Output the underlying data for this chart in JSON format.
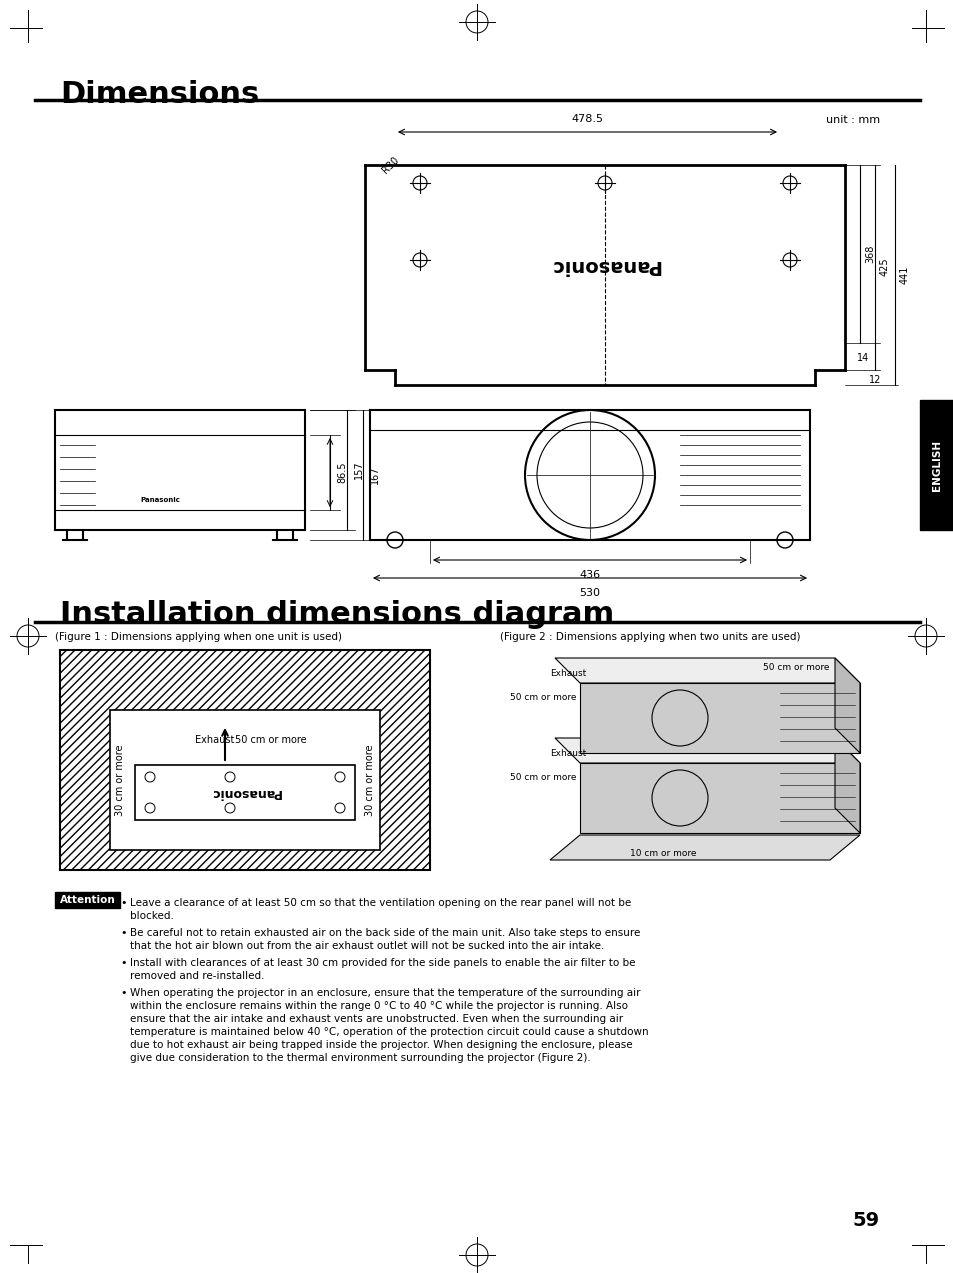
{
  "title_dimensions": "Dimensions",
  "title_installation": "Installation dimensions diagram",
  "unit_label": "unit : mm",
  "dim_478_5": "478.5",
  "dim_368": "368",
  "dim_425": "425",
  "dim_441": "441",
  "dim_R30": "R30",
  "dim_14": "14",
  "dim_12": "12",
  "dim_86_5": "86.5",
  "dim_157": "157",
  "dim_167": "167",
  "dim_436": "436",
  "dim_530": "530",
  "fig1_caption": "(Figure 1 : Dimensions applying when one unit is used)",
  "fig2_caption": "(Figure 2 : Dimensions applying when two units are used)",
  "exhaust_label": "Exhaust",
  "label_50cm_top": "50 cm or more",
  "label_30cm_left": "30 cm or more",
  "label_30cm_right": "30 cm or more",
  "label_50cm_fig2_top": "50 cm or more",
  "label_50cm_fig2_left": "50 cm or more",
  "label_50cm_fig2_mid": "50 cm or more",
  "label_10cm_fig2": "10 cm or more",
  "attention_label": "Attention",
  "attention_text1": "Leave a clearance of at least 50 cm so that the ventilation opening on the rear panel will not be\nblocked.",
  "attention_text2": "Be careful not to retain exhausted air on the back side of the main unit. Also take steps to ensure\nthat the hot air blown out from the air exhaust outlet will not be sucked into the air intake.",
  "attention_text3": "Install with clearances of at least 30 cm provided for the side panels to enable the air filter to be\nremoved and re-installed.",
  "attention_text4": "When operating the projector in an enclosure, ensure that the temperature of the surrounding air\nwithin the enclosure remains within the range 0 °C to 40 °C while the projector is running. Also\nensure that the air intake and exhaust vents are unobstructed. Even when the surrounding air\ntemperature is maintained below 40 °C, operation of the protection circuit could cause a shutdown\ndue to hot exhaust air being trapped inside the projector. When designing the enclosure, please\ngive due consideration to the thermal environment surrounding the projector (Figure 2).",
  "page_number": "59",
  "english_label": "ENGLISH",
  "bg_color": "#ffffff",
  "text_color": "#000000",
  "line_color": "#000000"
}
